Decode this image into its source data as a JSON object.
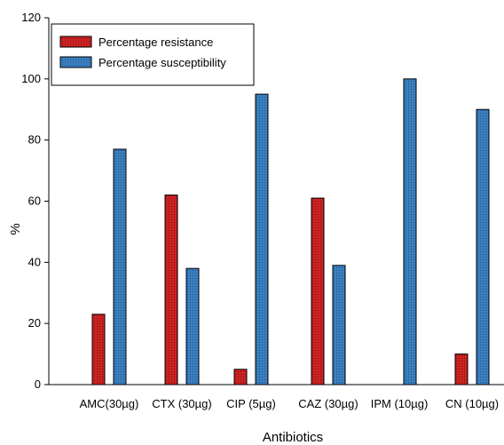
{
  "chart_data": {
    "type": "bar",
    "xlabel": "Antibiotics",
    "ylabel": "%",
    "ylim": [
      0,
      120
    ],
    "yticks": [
      0,
      20,
      40,
      60,
      80,
      100,
      120
    ],
    "categories": [
      "AMC(30µg)",
      "CTX (30µg)",
      "CIP (5µg)",
      "CAZ (30µg)",
      "IPM (10µg)",
      "CN (10µg)"
    ],
    "series": [
      {
        "name": "Percentage resistance",
        "values": [
          23,
          62,
          5,
          61,
          0,
          10
        ],
        "color": "#cc2222"
      },
      {
        "name": "Percentage susceptibility",
        "values": [
          77,
          38,
          95,
          39,
          100,
          90
        ],
        "color": "#3a7fc0"
      }
    ],
    "legend_position": "top-left",
    "grid": false
  }
}
